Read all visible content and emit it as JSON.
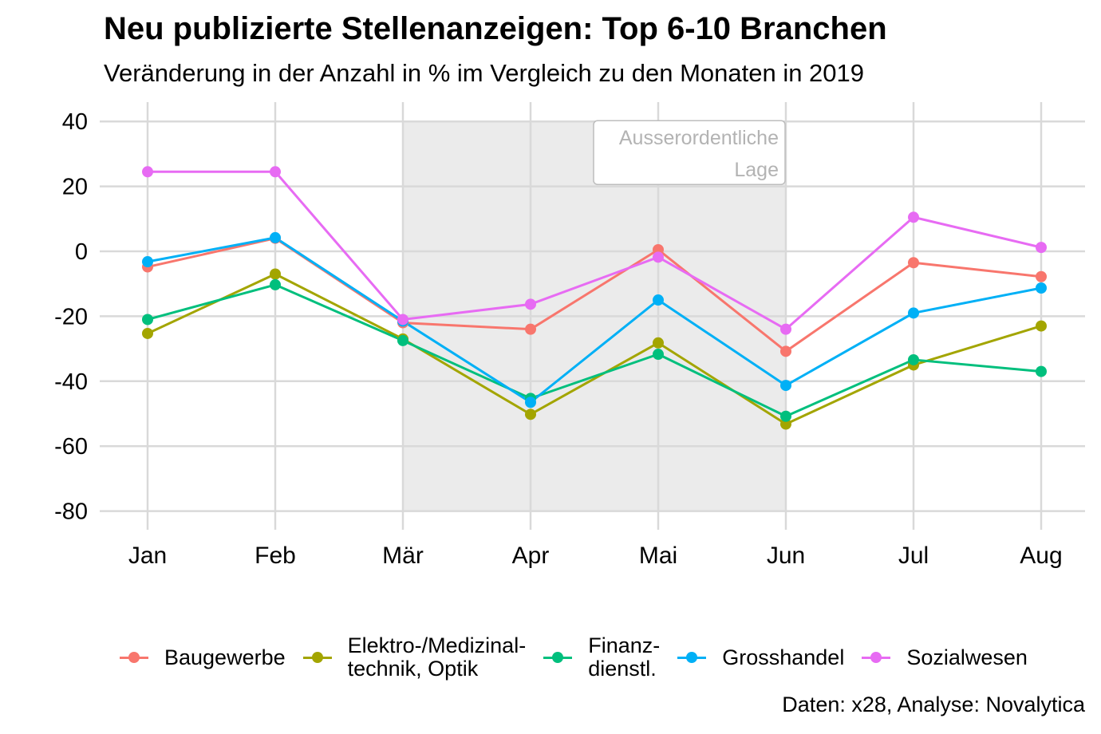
{
  "title": "Neu publizierte Stellenanzeigen: Top 6-10 Branchen",
  "subtitle": "Veränderung in der Anzahl in % im Vergleich zu den Monaten in 2019",
  "caption": "Daten: x28, Analyse: Novalytica",
  "chart_data": {
    "type": "line",
    "categories": [
      "Jan",
      "Feb",
      "Mär",
      "Apr",
      "Mai",
      "Jun",
      "Jul",
      "Aug"
    ],
    "ylim": [
      -88,
      46
    ],
    "yticks": [
      40,
      20,
      0,
      -20,
      -40,
      -60,
      -80
    ],
    "grid": true,
    "legend_position": "bottom",
    "shaded_region": {
      "from": "Mär",
      "to": "Jun",
      "label_line1": "Ausserordentliche",
      "label_line2": "Lage",
      "color": "#ebebeb"
    },
    "series": [
      {
        "name": "Baugewerbe",
        "color": "#F8766D",
        "values": [
          -4.8,
          4.0,
          -22.0,
          -24.0,
          0.5,
          -30.8,
          -3.5,
          -7.8
        ]
      },
      {
        "name": "Elektro-/Medizinal-\ntechnik, Optik",
        "color": "#A3A500",
        "values": [
          -25.3,
          -7.0,
          -27.0,
          -50.2,
          -28.2,
          -53.2,
          -35.0,
          -23.0
        ]
      },
      {
        "name": "Finanz-\ndienstl.",
        "color": "#00BF7D",
        "values": [
          -21.0,
          -10.3,
          -27.5,
          -45.3,
          -31.7,
          -50.8,
          -33.4,
          -37.0
        ]
      },
      {
        "name": "Grosshandel",
        "color": "#00B0F6",
        "values": [
          -3.2,
          4.2,
          -21.5,
          -46.5,
          -15.0,
          -41.3,
          -19.0,
          -11.3
        ]
      },
      {
        "name": "Sozialwesen",
        "color": "#E76BF3",
        "values": [
          24.5,
          24.5,
          -21.0,
          -16.3,
          -1.8,
          -24.0,
          10.5,
          1.2
        ]
      }
    ]
  }
}
